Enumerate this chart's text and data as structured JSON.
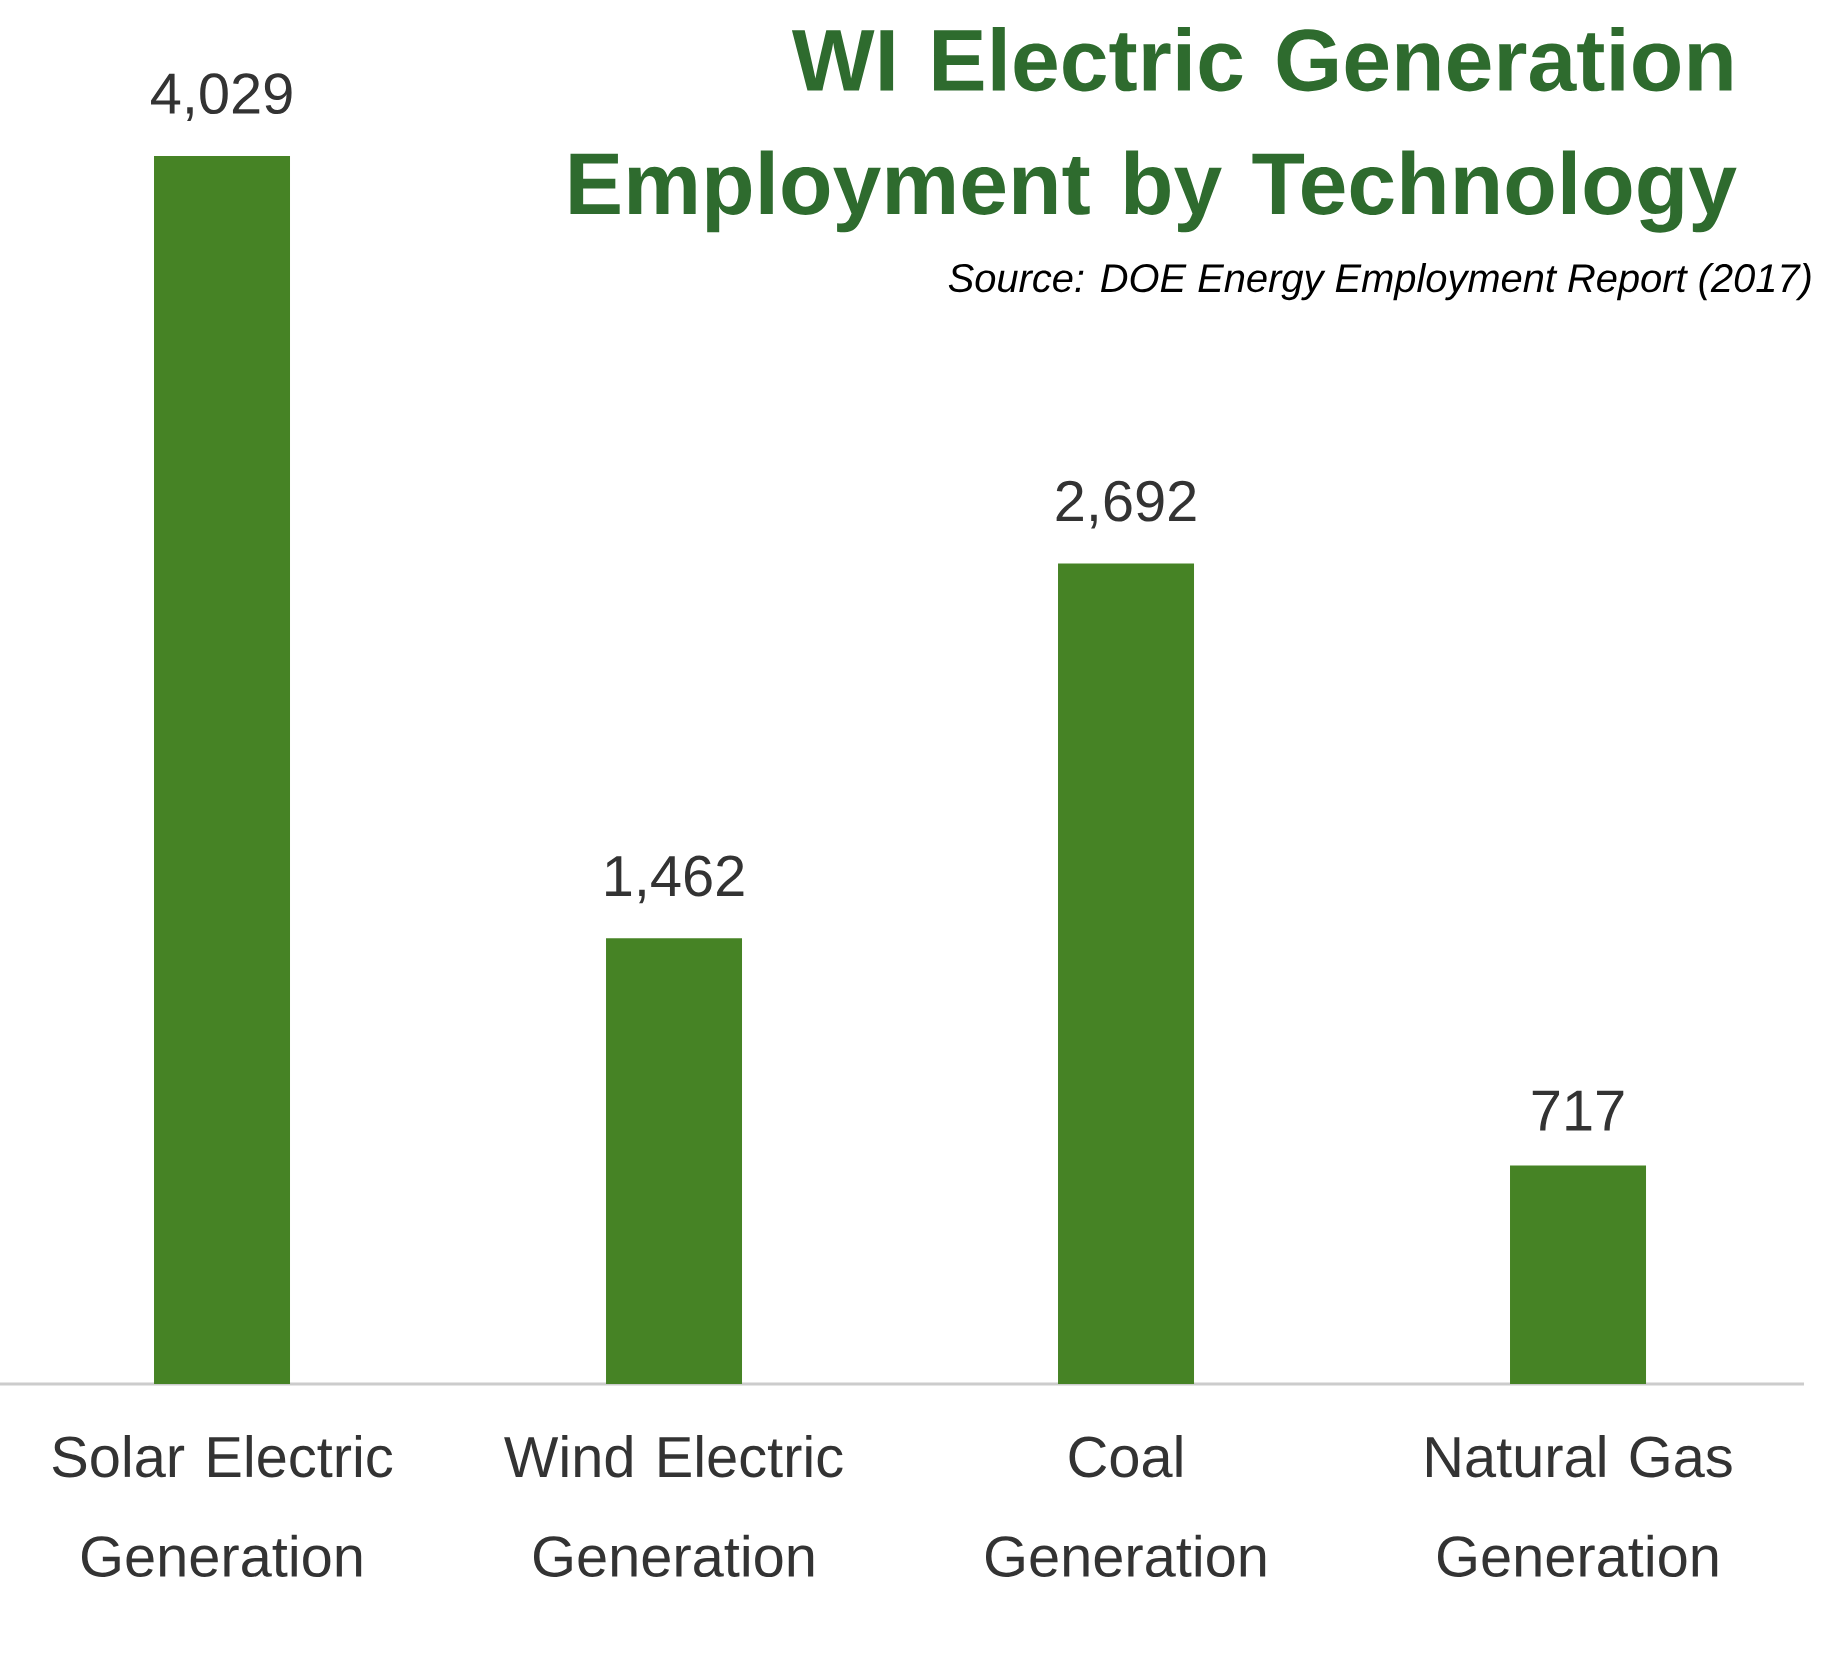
{
  "chart_data": {
    "type": "bar",
    "title": "WI Electric Generation Employment by Technology",
    "annotations": [
      "Source: DOE Energy Employment Report (2017)"
    ],
    "categories": [
      "Solar Electric Generation",
      "Wind Electric Generation",
      "Coal Generation",
      "Natural Gas Generation"
    ],
    "values": [
      4029,
      1462,
      2692,
      717
    ],
    "value_labels": [
      "4,029",
      "1,462",
      "2,692",
      "717"
    ],
    "color": "#468325"
  }
}
